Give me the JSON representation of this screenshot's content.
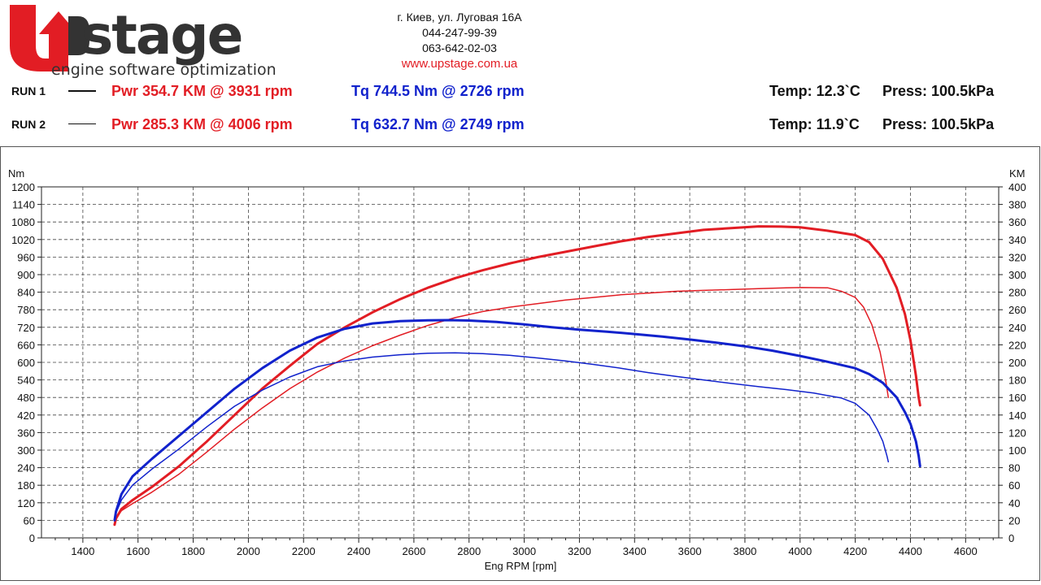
{
  "header": {
    "logo_main": "Upstage",
    "logo_tagline": "engine software optimization",
    "address": "г. Киев, ул. Луговая 16А",
    "phone1": "044-247-99-39",
    "phone2": "063-642-02-03",
    "website": "www.upstage.com.ua"
  },
  "runs": [
    {
      "label": "RUN 1",
      "pwr": "Pwr  354.7 KM @ 3931 rpm",
      "tq": "Tq 744.5 Nm @ 2726 rpm",
      "temp": "Temp: 12.3`C",
      "press": "Press: 100.5kPa"
    },
    {
      "label": "RUN 2",
      "pwr": "Pwr  285.3 KM @ 4006 rpm",
      "tq": "Tq 632.7 Nm @ 2749 rpm",
      "temp": "Temp: 11.9`C",
      "press": "Press: 100.5kPa"
    }
  ],
  "colors": {
    "power": "#e21d24",
    "torque": "#1122cc",
    "grid": "#444444",
    "logo_red": "#e21d24",
    "logo_dark": "#333333"
  },
  "chart_data": {
    "type": "line",
    "title": "",
    "xlabel": "Eng RPM [rpm]",
    "ylabel_left": "Nm",
    "ylabel_right": "KM",
    "xlim": [
      1250,
      4720
    ],
    "ylim_left": [
      0,
      1200
    ],
    "ylim_right": [
      0,
      400
    ],
    "x_ticks": [
      1400,
      1600,
      1800,
      2000,
      2200,
      2400,
      2600,
      2800,
      3000,
      3200,
      3400,
      3600,
      3800,
      4000,
      4200,
      4400,
      4600
    ],
    "y_ticks_left": [
      0,
      60,
      120,
      180,
      240,
      300,
      360,
      420,
      480,
      540,
      600,
      660,
      720,
      780,
      840,
      900,
      960,
      1020,
      1080,
      1140,
      1200
    ],
    "y_ticks_right": [
      0,
      20,
      40,
      60,
      80,
      100,
      120,
      140,
      160,
      180,
      200,
      220,
      240,
      260,
      280,
      300,
      320,
      340,
      360,
      380,
      400
    ],
    "grid": true,
    "series": [
      {
        "run": 1,
        "axis": "right",
        "color": "#e21d24",
        "width": 3,
        "x": [
          1515,
          1520,
          1540,
          1580,
          1650,
          1750,
          1850,
          1950,
          2050,
          2150,
          2250,
          2350,
          2450,
          2550,
          2650,
          2750,
          2850,
          2950,
          3050,
          3150,
          3250,
          3350,
          3450,
          3550,
          3650,
          3750,
          3850,
          3931,
          4000,
          4100,
          4200,
          4250,
          4300,
          4350,
          4380,
          4400,
          4420,
          4430,
          4435
        ],
        "y": [
          15,
          22,
          33,
          43,
          58,
          82,
          110,
          140,
          170,
          196,
          221,
          240,
          257,
          272,
          285,
          296,
          305,
          313,
          320,
          326,
          332,
          338,
          343,
          347,
          351,
          353,
          355,
          354.7,
          354,
          350,
          345,
          337,
          318,
          285,
          255,
          225,
          185,
          160,
          151
        ]
      },
      {
        "run": 2,
        "axis": "right",
        "color": "#e21d24",
        "width": 1.5,
        "x": [
          1515,
          1520,
          1540,
          1580,
          1650,
          1750,
          1850,
          1950,
          2050,
          2150,
          2250,
          2350,
          2450,
          2550,
          2650,
          2750,
          2850,
          2950,
          3050,
          3150,
          3250,
          3350,
          3450,
          3550,
          3650,
          3750,
          3850,
          3950,
          4006,
          4100,
          4150,
          4200,
          4230,
          4260,
          4290,
          4310,
          4320
        ],
        "y": [
          15,
          22,
          31,
          39,
          52,
          73,
          98,
          124,
          148,
          170,
          189,
          205,
          219,
          231,
          242,
          251,
          258,
          263,
          267,
          271,
          274,
          277,
          279,
          281,
          282,
          283,
          284,
          285,
          285.3,
          285,
          281,
          274,
          263,
          243,
          212,
          180,
          160
        ]
      },
      {
        "run": 1,
        "axis": "left",
        "color": "#1122cc",
        "width": 3,
        "x": [
          1515,
          1520,
          1540,
          1580,
          1650,
          1750,
          1850,
          1950,
          2050,
          2150,
          2250,
          2350,
          2450,
          2550,
          2650,
          2726,
          2800,
          2900,
          3000,
          3100,
          3200,
          3300,
          3400,
          3500,
          3600,
          3700,
          3800,
          3900,
          4000,
          4100,
          4200,
          4250,
          4300,
          4350,
          4380,
          4400,
          4420,
          4430,
          4435
        ],
        "y": [
          60,
          90,
          150,
          210,
          270,
          350,
          430,
          510,
          580,
          640,
          685,
          715,
          733,
          741,
          744,
          744.5,
          743,
          738,
          730,
          720,
          712,
          705,
          697,
          688,
          678,
          667,
          655,
          640,
          622,
          602,
          580,
          560,
          530,
          480,
          430,
          390,
          330,
          280,
          245
        ]
      },
      {
        "run": 2,
        "axis": "left",
        "color": "#1122cc",
        "width": 1.5,
        "x": [
          1515,
          1520,
          1540,
          1580,
          1650,
          1750,
          1850,
          1950,
          2050,
          2150,
          2250,
          2350,
          2450,
          2550,
          2650,
          2749,
          2850,
          2950,
          3050,
          3150,
          3250,
          3350,
          3450,
          3550,
          3650,
          3750,
          3850,
          3950,
          4050,
          4150,
          4200,
          4250,
          4280,
          4300,
          4315,
          4320
        ],
        "y": [
          60,
          85,
          130,
          180,
          235,
          305,
          380,
          450,
          505,
          550,
          585,
          605,
          618,
          626,
          631,
          632.7,
          630,
          624,
          615,
          605,
          593,
          580,
          565,
          552,
          540,
          528,
          517,
          507,
          495,
          478,
          460,
          420,
          370,
          330,
          280,
          260
        ]
      }
    ]
  }
}
